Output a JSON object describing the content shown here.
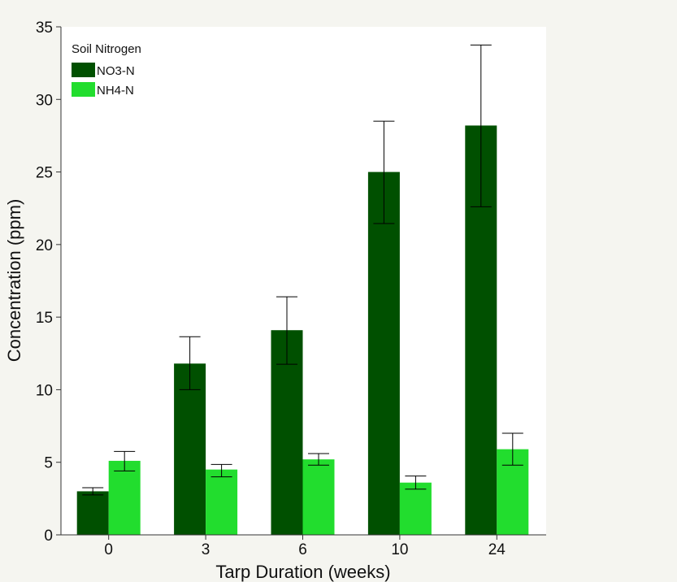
{
  "chart_data": {
    "type": "bar",
    "title": "",
    "xlabel": "Tarp Duration (weeks)",
    "ylabel": "Concentration (ppm)",
    "ylim": [
      0,
      35
    ],
    "yticks": [
      0,
      5,
      10,
      15,
      20,
      25,
      30,
      35
    ],
    "categories": [
      "0",
      "3",
      "6",
      "10",
      "24"
    ],
    "legend": {
      "title": "Soil Nitrogen",
      "placement": "top-left"
    },
    "series": [
      {
        "name": "NO3-N",
        "color": "#005000",
        "values": [
          3.0,
          11.8,
          14.1,
          25.0,
          28.2
        ],
        "err_low": [
          2.75,
          10.0,
          11.75,
          21.45,
          22.6
        ],
        "err_high": [
          3.25,
          13.65,
          16.4,
          28.5,
          33.75
        ]
      },
      {
        "name": "NH4-N",
        "color": "#22dd2e",
        "values": [
          5.1,
          4.5,
          5.2,
          3.6,
          5.9
        ],
        "err_low": [
          4.4,
          4.0,
          4.8,
          3.15,
          4.8
        ],
        "err_high": [
          5.75,
          4.85,
          5.6,
          4.05,
          7.0
        ]
      }
    ]
  }
}
